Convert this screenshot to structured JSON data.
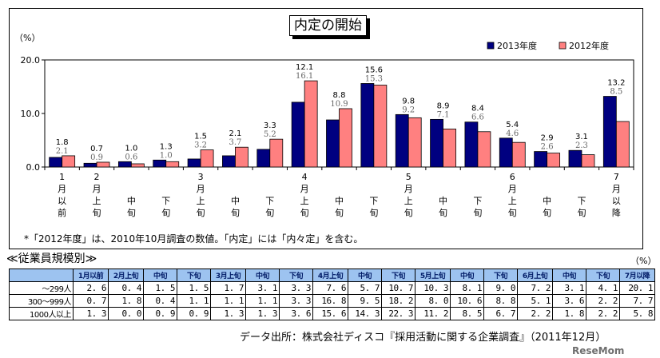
{
  "chart_data": {
    "type": "bar",
    "title": "内定の開始",
    "ylabel": "（%）",
    "ylim": [
      0,
      20
    ],
    "yticks": [
      "0.0",
      "10.0",
      "20.0"
    ],
    "ytick_values": [
      0,
      10,
      20
    ],
    "legend_position": "top-right",
    "categories": [
      [
        "1",
        "月",
        "以",
        "前"
      ],
      [
        "2",
        "月",
        "上",
        "旬"
      ],
      [
        "",
        "",
        "中",
        "旬"
      ],
      [
        "",
        "",
        "下",
        "旬"
      ],
      [
        "3",
        "月",
        "上",
        "旬"
      ],
      [
        "",
        "",
        "中",
        "旬"
      ],
      [
        "",
        "",
        "下",
        "旬"
      ],
      [
        "4",
        "月",
        "上",
        "旬"
      ],
      [
        "",
        "",
        "中",
        "旬"
      ],
      [
        "",
        "",
        "下",
        "旬"
      ],
      [
        "5",
        "月",
        "上",
        "旬"
      ],
      [
        "",
        "",
        "中",
        "旬"
      ],
      [
        "",
        "",
        "下",
        "旬"
      ],
      [
        "6",
        "月",
        "上",
        "旬"
      ],
      [
        "",
        "",
        "中",
        "旬"
      ],
      [
        "",
        "",
        "下",
        "旬"
      ],
      [
        "7",
        "月",
        "以",
        "降"
      ]
    ],
    "series": [
      {
        "name": "2013年度",
        "color": "#000080",
        "values": [
          1.8,
          0.7,
          1.0,
          1.3,
          1.5,
          2.1,
          3.3,
          12.1,
          8.8,
          15.6,
          9.8,
          8.9,
          8.4,
          5.4,
          2.9,
          3.1,
          13.2
        ]
      },
      {
        "name": "2012年度",
        "color": "#ff8080",
        "values": [
          2.1,
          0.9,
          0.6,
          1.0,
          3.2,
          3.7,
          5.2,
          16.1,
          10.9,
          15.3,
          9.2,
          7.1,
          6.6,
          4.6,
          2.6,
          2.3,
          8.5
        ]
      }
    ],
    "grid": false,
    "footnote": "*「2012年度」は、2010年10月調査の数値。「内定」には「内々定」を含む。"
  },
  "table": {
    "caption": "≪従業員規模別≫",
    "unit": "（%）",
    "headers": [
      "",
      "1月以前",
      "2月上旬",
      "中旬",
      "下旬",
      "3月上旬",
      "中旬",
      "下旬",
      "4月上旬",
      "中旬",
      "下旬",
      "5月上旬",
      "中旬",
      "下旬",
      "6月上旬",
      "中旬",
      "下旬",
      "7月以降"
    ],
    "rows": [
      {
        "label": "～299人",
        "values": [
          "2. 6",
          "0. 4",
          "1. 5",
          "1. 5",
          "1. 7",
          "3. 1",
          "3. 3",
          "7. 6",
          "5. 7",
          "10. 7",
          "10. 3",
          "8. 1",
          "9. 0",
          "7. 2",
          "3. 1",
          "4. 1",
          "20. 1"
        ]
      },
      {
        "label": "300～999人",
        "values": [
          "0. 7",
          "1. 8",
          "0. 4",
          "1. 1",
          "1. 1",
          "1. 1",
          "3. 3",
          "16. 8",
          "9. 5",
          "18. 2",
          "8. 0",
          "10. 6",
          "8. 8",
          "5. 1",
          "3. 6",
          "2. 2",
          "7. 7"
        ]
      },
      {
        "label": "1000人以上",
        "values": [
          "1. 3",
          "0. 0",
          "0. 9",
          "0. 9",
          "1. 3",
          "1. 3",
          "3. 6",
          "15. 6",
          "14. 3",
          "22. 3",
          "11. 2",
          "8. 5",
          "6. 7",
          "2. 2",
          "1. 8",
          "2. 2",
          "5. 8"
        ]
      }
    ]
  },
  "source": "データ出所：株式会社ディスコ『採用活動に関する企業調査』（2011年12月）",
  "watermark": "ReseMom"
}
